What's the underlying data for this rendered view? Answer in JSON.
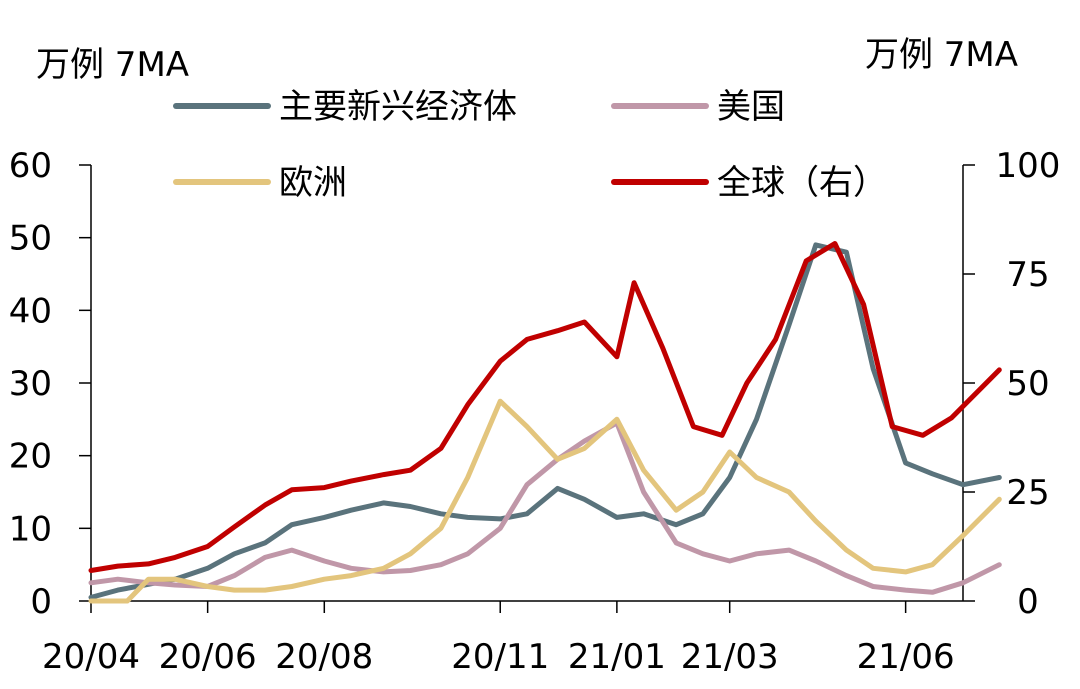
{
  "chart_data": {
    "type": "line",
    "title": "",
    "unit_left": "万例 7MA",
    "unit_right": "万例 7MA",
    "x_ticks": [
      "20/04",
      "20/06",
      "20/08",
      "20/11",
      "21/01",
      "21/03",
      "21/06"
    ],
    "x_range": [
      "2020-04",
      "2021-07"
    ],
    "y_left": {
      "range": [
        0,
        60
      ],
      "ticks": [
        0,
        10,
        20,
        30,
        40,
        50,
        60
      ]
    },
    "y_right": {
      "range": [
        0,
        100
      ],
      "ticks": [
        0,
        25,
        50,
        75,
        100
      ]
    },
    "grid": false,
    "legend": "top",
    "series": [
      {
        "name": "主要新兴经济体",
        "axis": "left",
        "color": "#5a737c",
        "points": [
          [
            "2020-04-01",
            0.5
          ],
          [
            "2020-04-15",
            1.5
          ],
          [
            "2020-05-01",
            2.3
          ],
          [
            "2020-05-15",
            3.0
          ],
          [
            "2020-06-01",
            4.5
          ],
          [
            "2020-06-15",
            6.5
          ],
          [
            "2020-07-01",
            8.0
          ],
          [
            "2020-07-15",
            10.5
          ],
          [
            "2020-08-01",
            11.5
          ],
          [
            "2020-08-15",
            12.5
          ],
          [
            "2020-09-01",
            13.5
          ],
          [
            "2020-09-15",
            13.0
          ],
          [
            "2020-10-01",
            12.0
          ],
          [
            "2020-10-15",
            11.5
          ],
          [
            "2020-11-01",
            11.3
          ],
          [
            "2020-11-15",
            12.0
          ],
          [
            "2020-12-01",
            15.5
          ],
          [
            "2020-12-15",
            14.0
          ],
          [
            "2021-01-01",
            11.5
          ],
          [
            "2021-01-15",
            12.0
          ],
          [
            "2021-02-01",
            10.5
          ],
          [
            "2021-02-15",
            12.0
          ],
          [
            "2021-03-01",
            17.0
          ],
          [
            "2021-03-15",
            25.0
          ],
          [
            "2021-04-01",
            38.0
          ],
          [
            "2021-04-15",
            49.0
          ],
          [
            "2021-05-01",
            48.0
          ],
          [
            "2021-05-15",
            32.0
          ],
          [
            "2021-06-01",
            19.0
          ],
          [
            "2021-06-15",
            17.5
          ],
          [
            "2021-07-01",
            16.0
          ],
          [
            "2021-07-20",
            17.0
          ]
        ]
      },
      {
        "name": "美国",
        "axis": "left",
        "color": "#c097a8",
        "points": [
          [
            "2020-04-01",
            2.5
          ],
          [
            "2020-04-15",
            3.0
          ],
          [
            "2020-05-01",
            2.5
          ],
          [
            "2020-05-15",
            2.2
          ],
          [
            "2020-06-01",
            2.0
          ],
          [
            "2020-06-15",
            3.5
          ],
          [
            "2020-07-01",
            6.0
          ],
          [
            "2020-07-15",
            7.0
          ],
          [
            "2020-08-01",
            5.5
          ],
          [
            "2020-08-15",
            4.5
          ],
          [
            "2020-09-01",
            4.0
          ],
          [
            "2020-09-15",
            4.2
          ],
          [
            "2020-10-01",
            5.0
          ],
          [
            "2020-10-15",
            6.5
          ],
          [
            "2020-11-01",
            10.0
          ],
          [
            "2020-11-15",
            16.0
          ],
          [
            "2020-12-01",
            19.5
          ],
          [
            "2020-12-15",
            22.0
          ],
          [
            "2021-01-01",
            24.5
          ],
          [
            "2021-01-15",
            15.0
          ],
          [
            "2021-02-01",
            8.0
          ],
          [
            "2021-02-15",
            6.5
          ],
          [
            "2021-03-01",
            5.5
          ],
          [
            "2021-03-15",
            6.5
          ],
          [
            "2021-04-01",
            7.0
          ],
          [
            "2021-04-15",
            5.5
          ],
          [
            "2021-05-01",
            3.5
          ],
          [
            "2021-05-15",
            2.0
          ],
          [
            "2021-06-01",
            1.5
          ],
          [
            "2021-06-15",
            1.2
          ],
          [
            "2021-07-01",
            2.5
          ],
          [
            "2021-07-20",
            5.0
          ]
        ]
      },
      {
        "name": "欧洲",
        "axis": "left",
        "color": "#e3c57d",
        "points": [
          [
            "2020-04-01",
            0
          ],
          [
            "2020-04-20",
            0
          ],
          [
            "2020-05-01",
            3.0
          ],
          [
            "2020-05-15",
            3.0
          ],
          [
            "2020-06-01",
            2.0
          ],
          [
            "2020-06-15",
            1.5
          ],
          [
            "2020-07-01",
            1.5
          ],
          [
            "2020-07-15",
            2.0
          ],
          [
            "2020-08-01",
            3.0
          ],
          [
            "2020-08-15",
            3.5
          ],
          [
            "2020-09-01",
            4.5
          ],
          [
            "2020-09-15",
            6.5
          ],
          [
            "2020-10-01",
            10.0
          ],
          [
            "2020-10-15",
            17.0
          ],
          [
            "2020-11-01",
            27.5
          ],
          [
            "2020-11-15",
            24.0
          ],
          [
            "2020-12-01",
            19.5
          ],
          [
            "2020-12-15",
            21.0
          ],
          [
            "2021-01-01",
            25.0
          ],
          [
            "2021-01-15",
            18.0
          ],
          [
            "2021-02-01",
            12.5
          ],
          [
            "2021-02-15",
            15.0
          ],
          [
            "2021-03-01",
            20.5
          ],
          [
            "2021-03-15",
            17.0
          ],
          [
            "2021-04-01",
            15.0
          ],
          [
            "2021-04-15",
            11.0
          ],
          [
            "2021-05-01",
            7.0
          ],
          [
            "2021-05-15",
            4.5
          ],
          [
            "2021-06-01",
            4.0
          ],
          [
            "2021-06-15",
            5.0
          ],
          [
            "2021-07-01",
            9.0
          ],
          [
            "2021-07-20",
            14.0
          ]
        ]
      },
      {
        "name": "全球（右）",
        "axis": "right",
        "color": "#c00000",
        "points": [
          [
            "2020-04-01",
            7.0
          ],
          [
            "2020-04-15",
            8.0
          ],
          [
            "2020-05-01",
            8.5
          ],
          [
            "2020-05-15",
            10.0
          ],
          [
            "2020-06-01",
            12.5
          ],
          [
            "2020-06-15",
            17.0
          ],
          [
            "2020-07-01",
            22.0
          ],
          [
            "2020-07-15",
            25.5
          ],
          [
            "2020-08-01",
            26.0
          ],
          [
            "2020-08-15",
            27.5
          ],
          [
            "2020-09-01",
            29.0
          ],
          [
            "2020-09-15",
            30.0
          ],
          [
            "2020-10-01",
            35.0
          ],
          [
            "2020-10-15",
            45.0
          ],
          [
            "2020-11-01",
            55.0
          ],
          [
            "2020-11-15",
            60.0
          ],
          [
            "2020-12-01",
            62.0
          ],
          [
            "2020-12-15",
            64.0
          ],
          [
            "2021-01-01",
            56.0
          ],
          [
            "2021-01-10",
            73.0
          ],
          [
            "2021-01-25",
            58.0
          ],
          [
            "2021-02-10",
            40.0
          ],
          [
            "2021-02-25",
            38.0
          ],
          [
            "2021-03-10",
            50.0
          ],
          [
            "2021-03-25",
            60.0
          ],
          [
            "2021-04-10",
            78.0
          ],
          [
            "2021-04-25",
            82.0
          ],
          [
            "2021-05-10",
            68.0
          ],
          [
            "2021-05-25",
            40.0
          ],
          [
            "2021-06-10",
            38.0
          ],
          [
            "2021-06-25",
            42.0
          ],
          [
            "2021-07-20",
            53.0
          ]
        ]
      }
    ]
  }
}
